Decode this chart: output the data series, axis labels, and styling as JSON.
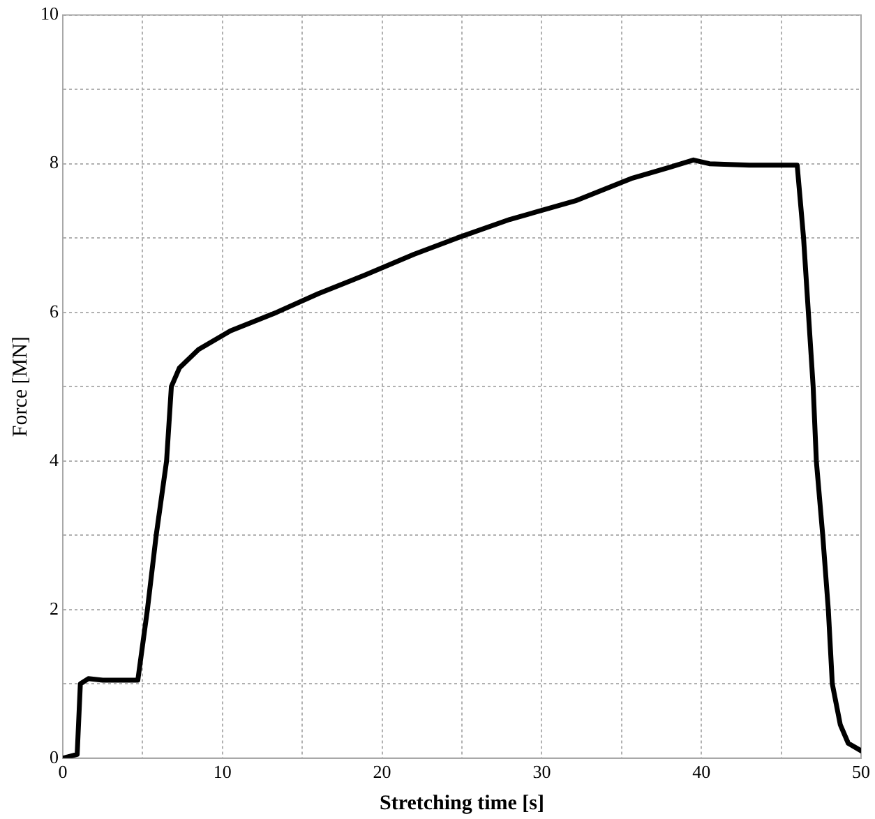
{
  "chart_data": {
    "type": "line",
    "xlabel": "Stretching time [s]",
    "ylabel": "Force [MN]",
    "xlim": [
      0,
      50
    ],
    "ylim": [
      0,
      10
    ],
    "xticks": [
      0,
      {
        "value": 5,
        "label": null
      },
      10,
      {
        "value": 15,
        "label": null
      },
      20,
      {
        "value": 25,
        "label": null
      },
      30,
      {
        "value": 35,
        "label": null
      },
      40,
      {
        "value": 45,
        "label": null
      },
      50
    ],
    "yticks": [
      0,
      {
        "value": 1,
        "label": null
      },
      2,
      {
        "value": 3,
        "label": null
      },
      4,
      {
        "value": 5,
        "label": null
      },
      6,
      {
        "value": 7,
        "label": null
      },
      8,
      {
        "value": 9,
        "label": null
      },
      10
    ],
    "grid": true,
    "legend": false,
    "marker": "none",
    "line_style": "solid",
    "series": [
      {
        "color": "#000000",
        "x": [
          0,
          0.9,
          1.1,
          1.6,
          2.5,
          4.7,
          5.3,
          5.85,
          6.5,
          6.8,
          7.3,
          8.5,
          10.5,
          13.4,
          16,
          18.9,
          22,
          24.7,
          28,
          32.1,
          35.6,
          38,
          39.5,
          40.5,
          43,
          46,
          46.4,
          46.7,
          47,
          47.2,
          47.6,
          47.95,
          48.2,
          48.7,
          49.2,
          50
        ],
        "values": [
          0,
          0.05,
          1.0,
          1.07,
          1.05,
          1.05,
          2,
          3,
          4,
          5,
          5.25,
          5.5,
          5.75,
          6,
          6.25,
          6.5,
          6.78,
          7,
          7.25,
          7.5,
          7.8,
          7.95,
          8.05,
          8.0,
          7.98,
          7.98,
          7,
          6,
          5,
          4,
          3,
          2,
          1,
          0.45,
          0.2,
          0.1
        ]
      }
    ]
  }
}
